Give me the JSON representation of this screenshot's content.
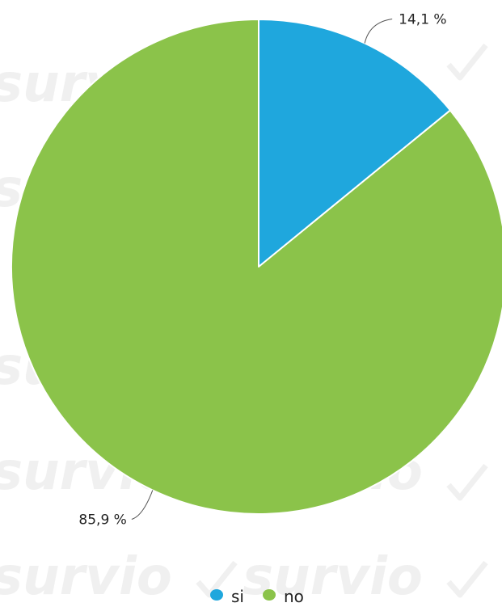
{
  "chart_data": {
    "type": "pie",
    "title": "",
    "slices": [
      {
        "label": "si",
        "value": 14.1,
        "display": "14,1 %",
        "color": "#1fa7dd"
      },
      {
        "label": "no",
        "value": 85.9,
        "display": "85,9 %",
        "color": "#8bc34a"
      }
    ],
    "legend": {
      "position": "bottom",
      "items": [
        {
          "label": "si",
          "color": "#1fa7dd"
        },
        {
          "label": "no",
          "color": "#8bc34a"
        }
      ]
    }
  },
  "watermark": {
    "text": "survio"
  }
}
